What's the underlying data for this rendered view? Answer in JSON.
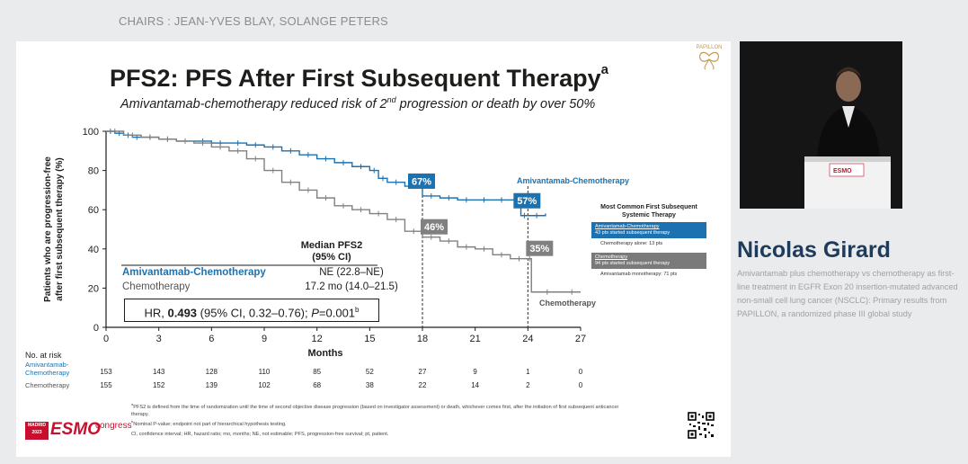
{
  "chairs": "CHAIRS : JEAN-YVES BLAY, SOLANGE PETERS",
  "slide": {
    "title": "PFS2: PFS After First Subsequent Therapy",
    "title_sup": "a",
    "subtitle_before": "Amivantamab-chemotherapy reduced risk of 2",
    "subtitle_sup": "nd",
    "subtitle_after": " progression or death by over 50%",
    "logo_text": "PAPILLON"
  },
  "chart_data": {
    "type": "line",
    "title": "",
    "xlabel": "Months",
    "ylabel": "Patients who are progression-free after first subsequent therapy (%)",
    "xlim": [
      0,
      27
    ],
    "ylim": [
      0,
      100
    ],
    "xticks": [
      0,
      3,
      6,
      9,
      12,
      15,
      18,
      21,
      24,
      27
    ],
    "yticks": [
      0,
      20,
      40,
      60,
      80,
      100
    ],
    "series": [
      {
        "name": "Amivantamab-Chemotherapy",
        "color": "#1c72b1",
        "x": [
          0,
          0.5,
          1,
          1.5,
          2,
          3,
          4,
          5,
          6,
          7,
          8,
          9,
          10,
          11,
          12,
          13,
          14,
          15,
          15.5,
          16,
          17,
          18,
          19,
          20,
          21,
          22,
          23,
          23.6,
          24,
          25
        ],
        "y": [
          100,
          99,
          98,
          97,
          97,
          96,
          95,
          95,
          94,
          94,
          93,
          92,
          90,
          88,
          86,
          84,
          82,
          80,
          76,
          74,
          72,
          67,
          66,
          65,
          65,
          65,
          65,
          57,
          57,
          58
        ]
      },
      {
        "name": "Chemotherapy",
        "color": "#808080",
        "x": [
          0,
          1,
          2,
          3,
          4,
          5,
          6,
          7,
          8,
          9,
          10,
          11,
          12,
          13,
          14,
          15,
          16,
          17,
          18,
          19,
          20,
          21,
          22,
          23,
          24,
          24.2,
          26,
          27
        ],
        "y": [
          100,
          98,
          97,
          96,
          95,
          94,
          92,
          90,
          86,
          80,
          74,
          70,
          66,
          62,
          60,
          58,
          55,
          49,
          46,
          44,
          41,
          40,
          37,
          35,
          35,
          18,
          18,
          18
        ]
      }
    ],
    "annotations": [
      {
        "label": "67%",
        "x": 18,
        "y": 67,
        "color": "#1c72b1"
      },
      {
        "label": "46%",
        "x": 18,
        "y": 46,
        "color": "#808080"
      },
      {
        "label": "57%",
        "x": 24,
        "y": 57,
        "color": "#1c72b1"
      },
      {
        "label": "35%",
        "x": 24,
        "y": 35,
        "color": "#808080"
      }
    ],
    "reference_lines_x": [
      18,
      24
    ]
  },
  "median": {
    "title": "Median PFS2 (95% CI)",
    "amiv_label": "Amivantamab-Chemotherapy",
    "amiv_value": "NE (22.8–NE)",
    "chemo_label": "Chemotherapy",
    "chemo_value": "17.2 mo (14.0–21.5)"
  },
  "hr": {
    "prefix": "HR, ",
    "value": "0.493",
    "ci": " (95% CI, 0.32–0.76); ",
    "p_label": "P",
    "p_value": "=0.001",
    "p_sup": "b"
  },
  "inset": {
    "title": "Most Common First Subsequent Systemic Therapy",
    "amiv_box_label": "Amivantamab-Chemotherapy",
    "amiv_box_text": "43 pts started subsequent therapy",
    "amiv_sub": "Chemotherapy alone: 13 pts",
    "chemo_box_label": "Chemotherapy",
    "chemo_box_text": "94 pts started subsequent therapy",
    "chemo_sub": "Amivantamab monotherapy: 71 pts",
    "amiv_color": "#1c72b1",
    "chemo_color": "#7a7a7a"
  },
  "arm_labels": {
    "amiv": "Amivantamab-Chemotherapy",
    "chemo": "Chemotherapy"
  },
  "risk_table": {
    "header": "No. at risk",
    "amiv_label_1": "Amivantamab-",
    "amiv_label_2": "Chemotherapy",
    "chemo_label": "Chemotherapy",
    "amiv_values": [
      "153",
      "143",
      "128",
      "110",
      "85",
      "52",
      "27",
      "9",
      "1",
      "0"
    ],
    "chemo_values": [
      "155",
      "152",
      "139",
      "102",
      "68",
      "38",
      "22",
      "14",
      "2",
      "0"
    ]
  },
  "footnotes": {
    "a": "PFS2 is defined from the time of randomization until the time of second objective disease progression (based on investigator assessment) or death, whichever comes first, after the initiation of first subsequent anticancer therapy.",
    "b": "Nominal P-value; endpoint not part of hierarchical hypothesis testing.",
    "abbrev": "CI, confidence interval; HR, hazard ratio; mo, months; NE, not estimable; PFS, progression-free survival; pt, patient."
  },
  "congress": {
    "city": "MADRID",
    "year": "2023",
    "brand": "ESMO",
    "word": "congress"
  },
  "speaker": {
    "name": "Nicolas Girard",
    "description": "Amivantamab plus chemotherapy vs chemotherapy as first-line treatment in EGFR Exon 20 insertion-mutated advanced non-small cell lung cancer (NSCLC): Primary results from PAPILLON, a randomized phase III global study"
  }
}
